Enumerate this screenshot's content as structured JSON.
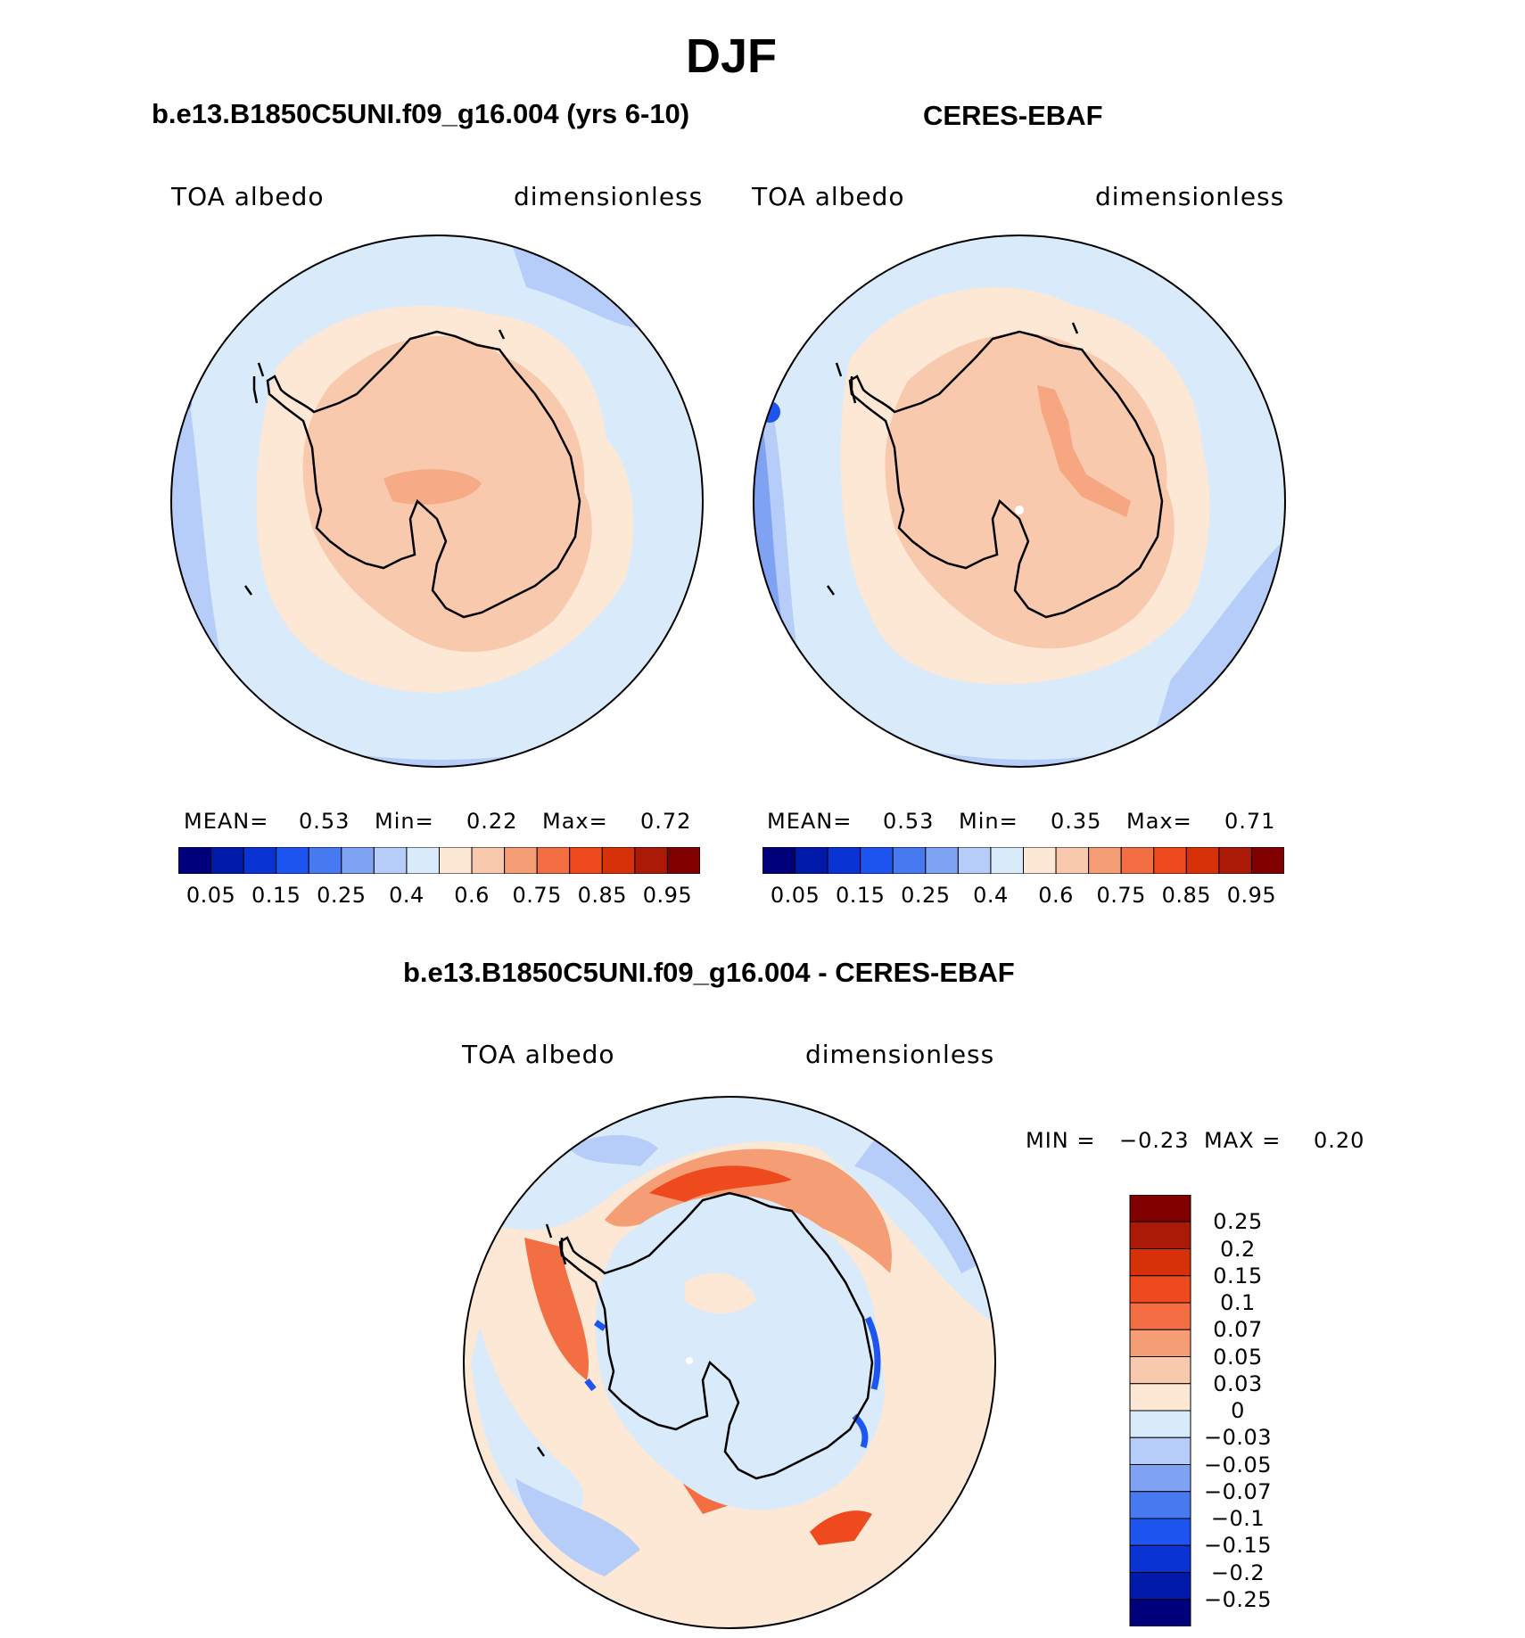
{
  "title": "DJF",
  "panels": [
    {
      "title": "b.e13.B1850C5UNI.f09_g16.004 (yrs 6-10)",
      "variable": "TOA albedo",
      "units": "dimensionless",
      "stats": {
        "mean_label": "MEAN=",
        "mean": "0.53",
        "min_label": "Min=",
        "min": "0.22",
        "max_label": "Max=",
        "max": "0.72"
      }
    },
    {
      "title": "CERES-EBAF",
      "variable": "TOA albedo",
      "units": "dimensionless",
      "stats": {
        "mean_label": "MEAN=",
        "mean": "0.53",
        "min_label": "Min=",
        "min": "0.35",
        "max_label": "Max=",
        "max": "0.71"
      }
    },
    {
      "title": "b.e13.B1850C5UNI.f09_g16.004 - CERES-EBAF",
      "variable": "TOA albedo",
      "units": "dimensionless",
      "stats": {
        "min_label": "MIN =",
        "min": "−0.23",
        "max_label": "MAX =",
        "max": "0.20"
      }
    }
  ],
  "abs_colorbar": {
    "colors": [
      "#00007a",
      "#0019a8",
      "#0a33d4",
      "#1e55f0",
      "#4779f0",
      "#7fa2f2",
      "#b5cdf8",
      "#d9eafb",
      "#fde8d6",
      "#f9c9ad",
      "#f59d74",
      "#f36f43",
      "#ef4a1d",
      "#d63109",
      "#ab1a06",
      "#800000"
    ],
    "tick_labels": [
      "0.05",
      "0.15",
      "0.25",
      "0.4",
      "0.6",
      "0.75",
      "0.85",
      "0.95"
    ]
  },
  "diff_colorbar": {
    "colors": [
      "#800000",
      "#ab1a06",
      "#d63109",
      "#ef4a1d",
      "#f36f43",
      "#f59d74",
      "#f9c9ad",
      "#fde8d6",
      "#d9eafb",
      "#b5cdf8",
      "#7fa2f2",
      "#4779f0",
      "#1e55f0",
      "#0a33d4",
      "#0019a8",
      "#00007a"
    ],
    "tick_labels": [
      "0.25",
      "0.2",
      "0.15",
      "0.1",
      "0.07",
      "0.05",
      "0.03",
      "0",
      "−0.03",
      "−0.05",
      "−0.07",
      "−0.1",
      "−0.15",
      "−0.2",
      "−0.25"
    ]
  },
  "chart_data": {
    "type": "heatmap",
    "title": "DJF",
    "projection": "south polar stereographic",
    "variable": "TOA albedo",
    "units": "dimensionless",
    "fields": [
      {
        "name": "b.e13.B1850C5UNI.f09_g16.004 (yrs 6-10)",
        "mean": 0.53,
        "min": 0.22,
        "max": 0.72
      },
      {
        "name": "CERES-EBAF",
        "mean": 0.53,
        "min": 0.35,
        "max": 0.71
      },
      {
        "name": "b.e13.B1850C5UNI.f09_g16.004 - CERES-EBAF",
        "min": -0.23,
        "max": 0.2
      }
    ],
    "abs_levels": [
      0.05,
      0.1,
      0.15,
      0.2,
      0.25,
      0.3,
      0.4,
      0.5,
      0.6,
      0.7,
      0.75,
      0.8,
      0.85,
      0.9,
      0.95
    ],
    "diff_levels": [
      -0.25,
      -0.2,
      -0.15,
      -0.1,
      -0.07,
      -0.05,
      -0.03,
      0,
      0.03,
      0.05,
      0.07,
      0.1,
      0.15,
      0.2,
      0.25
    ]
  }
}
